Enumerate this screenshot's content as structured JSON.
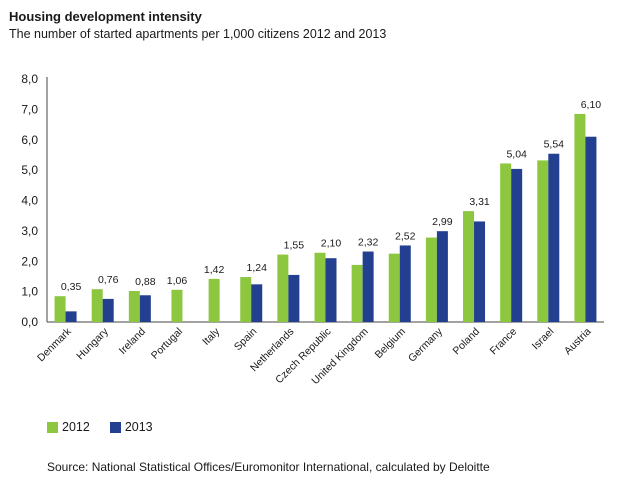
{
  "chart_data": {
    "type": "bar",
    "title": "Housing development intensity",
    "subtitle": "The number of started apartments per 1,000 citizens 2012 and 2013",
    "categories": [
      "Denmark",
      "Hungary",
      "Ireland",
      "Portugal",
      "Italy",
      "Spain",
      "Netherlands",
      "Czech Republic",
      "United Kingdom",
      "Belgium",
      "Germany",
      "Poland",
      "France",
      "Israel",
      "Austria"
    ],
    "series": [
      {
        "name": "2012",
        "color": "#8dc63f",
        "values": [
          0.85,
          1.08,
          1.02,
          1.06,
          1.42,
          1.48,
          2.22,
          2.28,
          1.88,
          2.25,
          2.78,
          3.65,
          5.22,
          5.32,
          6.85
        ]
      },
      {
        "name": "2013",
        "color": "#233f8f",
        "values": [
          0.35,
          0.76,
          0.88,
          null,
          null,
          1.24,
          1.55,
          2.1,
          2.32,
          2.52,
          2.99,
          3.31,
          5.04,
          5.54,
          6.1
        ]
      }
    ],
    "data_labels": [
      "0,35",
      "0,76",
      "0,88",
      "1,06",
      "1,42",
      "1,24",
      "1,55",
      "2,10",
      "2,32",
      "2,52",
      "2,99",
      "3,31",
      "5,04",
      "5,54",
      "6,10"
    ],
    "y_ticks": [
      "0,0",
      "1,0",
      "2,0",
      "3,0",
      "4,0",
      "5,0",
      "6,0",
      "7,0",
      "8,0"
    ],
    "ylim": [
      0,
      8
    ],
    "legend": [
      "2012",
      "2013"
    ],
    "legend_position": "bottom-left",
    "source": "Source: National Statistical Offices/Euromonitor International, calculated by Deloitte"
  }
}
